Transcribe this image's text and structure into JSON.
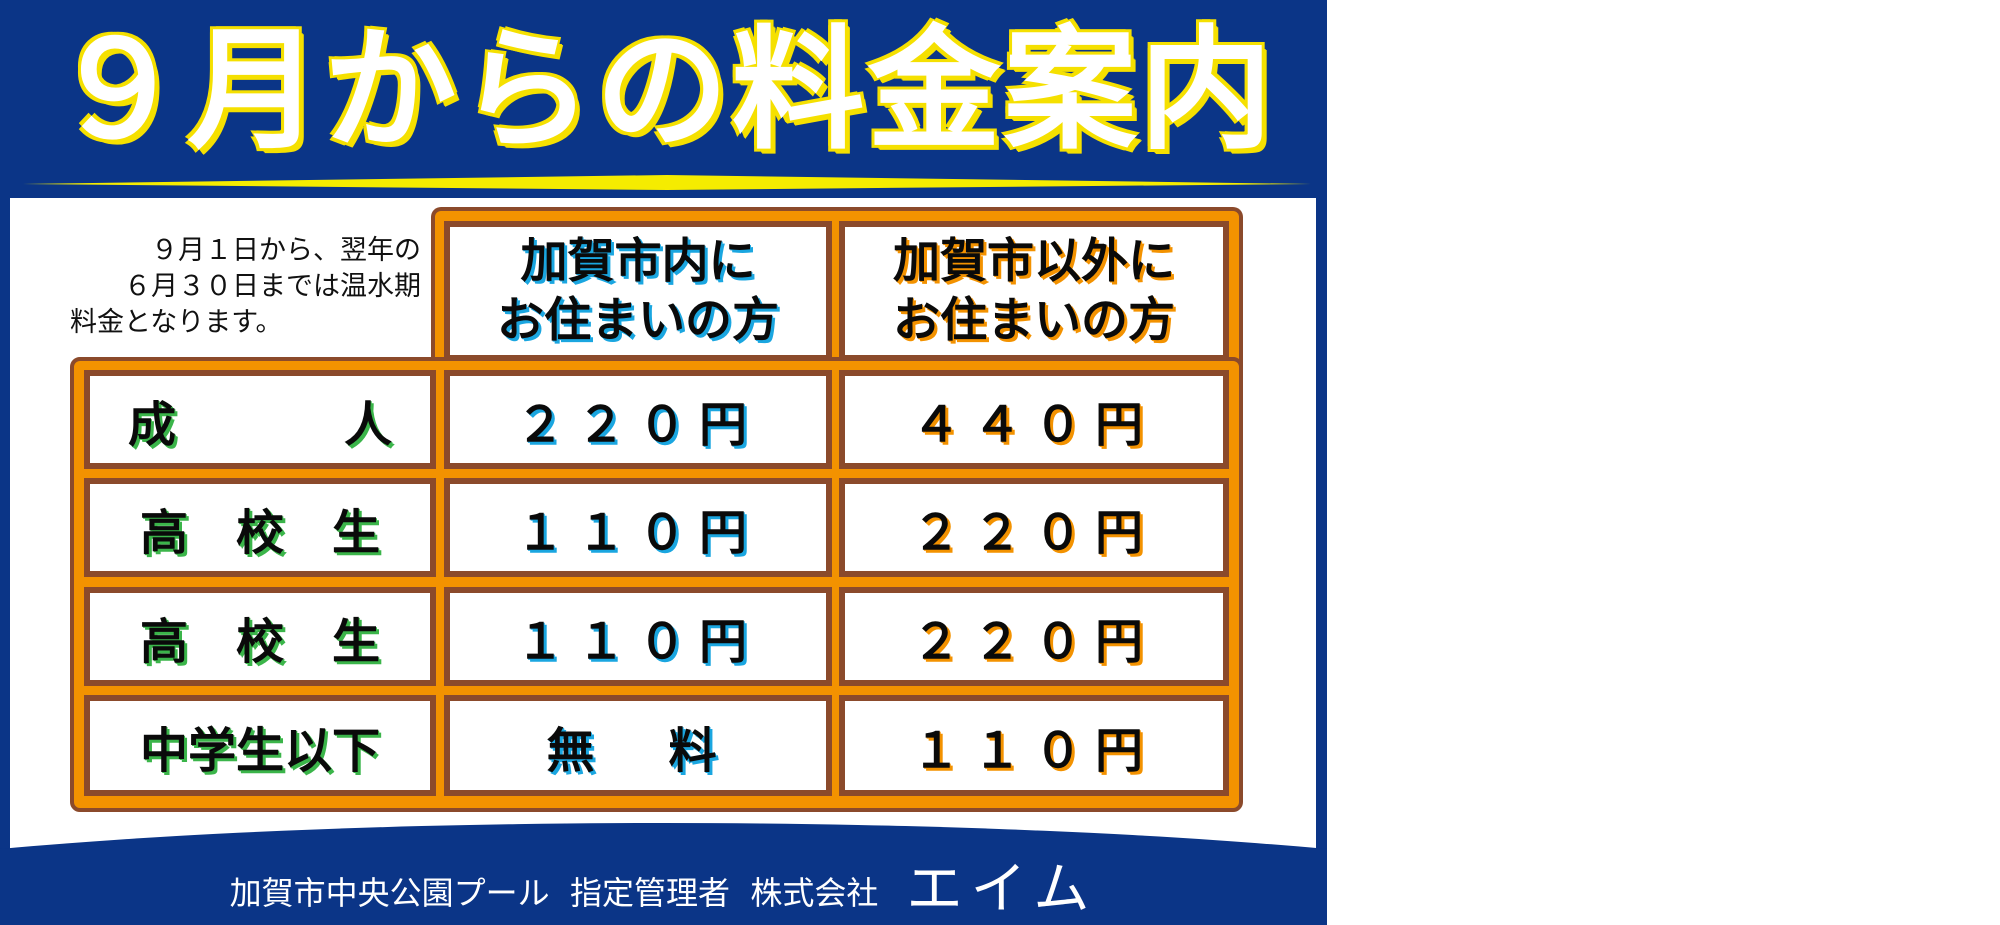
{
  "title": "９月からの料金案内",
  "note": {
    "lines": [
      "９月１日から、翌年の",
      "６月３０日までは温水期",
      "料金となります。"
    ]
  },
  "columns": [
    {
      "line1": "加賀市内に",
      "line2": "お住まいの方"
    },
    {
      "line1": "加賀市以外に",
      "line2": "お住まいの方"
    }
  ],
  "rows": [
    {
      "label_a": "成",
      "label_b": "人",
      "resident": "２２０円",
      "non_resident": "４４０円"
    },
    {
      "label": "高　校　生",
      "resident": "１１０円",
      "non_resident": "２２０円"
    },
    {
      "label": "高　校　生",
      "resident": "１１０円",
      "non_resident": "２２０円"
    },
    {
      "label": "中学生以下",
      "resident": "無　料",
      "non_resident": "１１０円"
    }
  ],
  "footer": {
    "facility": "加賀市中央公園プール",
    "manager": "指定管理者",
    "company": "株式会社",
    "brand": "エイム"
  },
  "colors": {
    "background_blue": "#0b3587",
    "title_outline_yellow": "#f5e000",
    "frame_orange": "#f39200",
    "cell_border_brown": "#8b4a2b",
    "resident_shadow_cyan": "#1aa6e0",
    "label_shadow_green": "#3bb54a"
  }
}
